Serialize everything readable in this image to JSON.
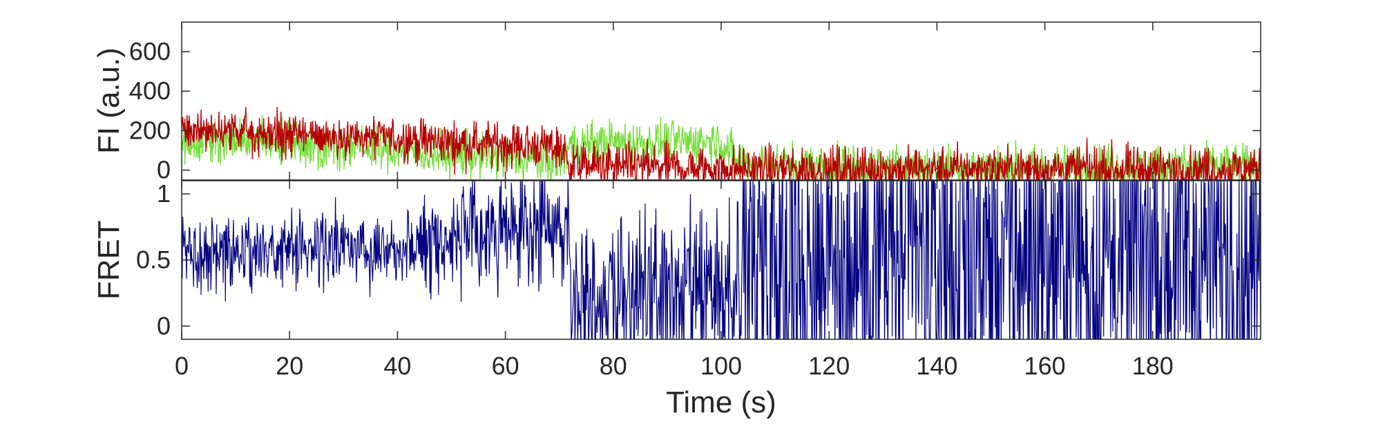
{
  "chart_data": [
    {
      "type": "line",
      "panel": "top",
      "ylabel": "FI (a.u.)",
      "xlim": [
        0,
        200
      ],
      "ylim": [
        -50,
        750
      ],
      "yticks": [
        0,
        200,
        400,
        600
      ],
      "ytick_labels": [
        "0",
        "200",
        "400",
        "600"
      ],
      "grid": false,
      "series": [
        {
          "role": "donor",
          "color": "#77dd3c",
          "keypoints_x": [
            0,
            10,
            20,
            30,
            40,
            50,
            60,
            70,
            72,
            80,
            90,
            100,
            103,
            110,
            120,
            130,
            140,
            150,
            160,
            170,
            180,
            190,
            200
          ],
          "keypoints_y": [
            140,
            150,
            130,
            120,
            100,
            80,
            60,
            40,
            130,
            140,
            140,
            150,
            40,
            30,
            20,
            20,
            20,
            20,
            20,
            20,
            20,
            20,
            20
          ],
          "noise": 55
        },
        {
          "role": "acceptor",
          "color": "#b50000",
          "keypoints_x": [
            0,
            10,
            20,
            30,
            40,
            50,
            60,
            70,
            72,
            80,
            90,
            100,
            110,
            120,
            130,
            140,
            150,
            160,
            170,
            180,
            190,
            200
          ],
          "keypoints_y": [
            200,
            190,
            180,
            170,
            160,
            140,
            130,
            120,
            30,
            20,
            15,
            10,
            5,
            5,
            5,
            5,
            5,
            5,
            5,
            5,
            5,
            5
          ],
          "noise": 55
        }
      ]
    },
    {
      "type": "line",
      "panel": "bottom",
      "xlabel": "Time (s)",
      "ylabel": "FRET",
      "xlim": [
        0,
        200
      ],
      "ylim": [
        -0.1,
        1.1
      ],
      "yticks": [
        0,
        0.5,
        1
      ],
      "ytick_labels": [
        "0",
        "0.5",
        "1"
      ],
      "xticks": [
        0,
        20,
        40,
        60,
        80,
        100,
        120,
        140,
        160,
        180
      ],
      "xtick_labels": [
        "0",
        "20",
        "40",
        "60",
        "80",
        "100",
        "120",
        "140",
        "160",
        "180"
      ],
      "grid": false,
      "series": [
        {
          "role": "FRET efficiency",
          "color": "#000080",
          "segments": [
            {
              "x": [
                0,
                45
              ],
              "y": [
                0.55,
                0.62
              ],
              "noise": 0.14
            },
            {
              "x": [
                45,
                72
              ],
              "y": [
                0.65,
                0.75
              ],
              "noise": 0.2
            },
            {
              "x": [
                72,
                103
              ],
              "y": [
                0.25,
                0.2
              ],
              "noise": 0.3
            },
            {
              "x": [
                103,
                200
              ],
              "y": [
                0.5,
                0.5
              ],
              "noise": 0.75
            }
          ]
        }
      ]
    }
  ]
}
